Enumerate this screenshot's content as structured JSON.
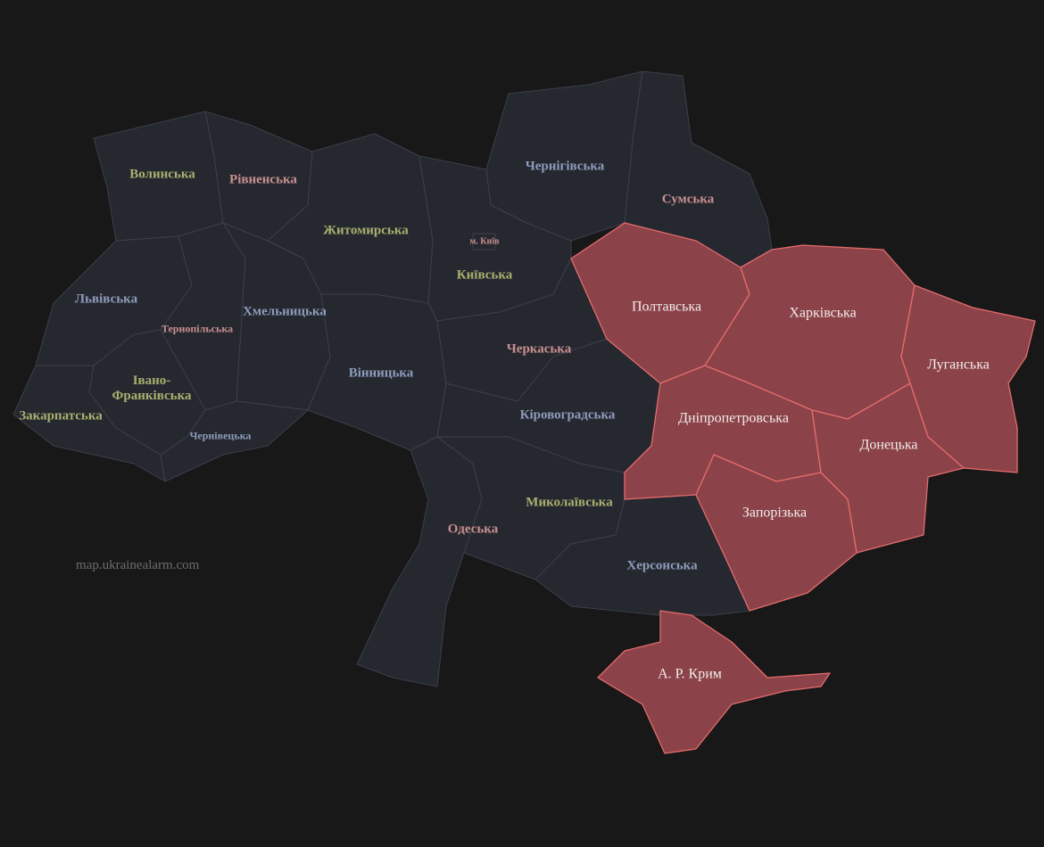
{
  "watermark": "map.ukrainealarm.com",
  "colors": {
    "background": "#181818",
    "region_fill": "#262830",
    "region_stroke": "#3c3f4a",
    "alert_fill": "#8b4248",
    "alert_stroke": "#e46c6c",
    "label_green": "#a9b06e",
    "label_blue": "#8d9cbb",
    "label_pink": "#c98f8f",
    "label_alert": "#f2eded"
  },
  "regions": [
    {
      "id": "volyn",
      "name": "Волинська",
      "label_color": "green",
      "alert": false
    },
    {
      "id": "rivne",
      "name": "Рівненська",
      "label_color": "pink",
      "alert": false
    },
    {
      "id": "zhytomyr",
      "name": "Житомирська",
      "label_color": "green",
      "alert": false
    },
    {
      "id": "chernihiv",
      "name": "Чернігівська",
      "label_color": "blue",
      "alert": false
    },
    {
      "id": "sumy",
      "name": "Сумська",
      "label_color": "pink",
      "alert": false
    },
    {
      "id": "kyiv",
      "name": "Київська",
      "label_color": "green",
      "alert": false
    },
    {
      "id": "kyiv_city",
      "name": "м. Київ",
      "label_color": "pink",
      "alert": false
    },
    {
      "id": "lviv",
      "name": "Львівська",
      "label_color": "blue",
      "alert": false
    },
    {
      "id": "ternopil",
      "name": "Тернопільська",
      "label_color": "pink",
      "alert": false
    },
    {
      "id": "khmelnytskyi",
      "name": "Хмельницька",
      "label_color": "blue",
      "alert": false
    },
    {
      "id": "ivano",
      "name": "Івано-Франківська",
      "label_lines": [
        "Івано-",
        "Франківська"
      ],
      "label_color": "green",
      "alert": false
    },
    {
      "id": "zakarpattia",
      "name": "Закарпатська",
      "label_color": "green",
      "alert": false
    },
    {
      "id": "chernivtsi",
      "name": "Чернівецька",
      "label_color": "blue",
      "alert": false
    },
    {
      "id": "vinnytsia",
      "name": "Вінницька",
      "label_color": "blue",
      "alert": false
    },
    {
      "id": "cherkasy",
      "name": "Черкаська",
      "label_color": "pink",
      "alert": false
    },
    {
      "id": "kirovohrad",
      "name": "Кіровоградська",
      "label_color": "blue",
      "alert": false
    },
    {
      "id": "mykolaiv",
      "name": "Миколаївська",
      "label_color": "green",
      "alert": false
    },
    {
      "id": "odesa",
      "name": "Одеська",
      "label_color": "pink",
      "alert": false
    },
    {
      "id": "kherson",
      "name": "Херсонська",
      "label_color": "blue",
      "alert": false
    },
    {
      "id": "poltava",
      "name": "Полтавська",
      "label_color": "alert",
      "alert": true
    },
    {
      "id": "kharkiv",
      "name": "Харківська",
      "label_color": "alert",
      "alert": true
    },
    {
      "id": "luhansk",
      "name": "Луганська",
      "label_color": "alert",
      "alert": true
    },
    {
      "id": "dnipro",
      "name": "Дніпропетровська",
      "label_color": "alert",
      "alert": true
    },
    {
      "id": "donetsk",
      "name": "Донецька",
      "label_color": "alert",
      "alert": true
    },
    {
      "id": "zaporizhzhia",
      "name": "Запорізька",
      "label_color": "alert",
      "alert": true
    },
    {
      "id": "crimea",
      "name": "А. Р. Крим",
      "label_color": "alert",
      "alert": true
    }
  ]
}
